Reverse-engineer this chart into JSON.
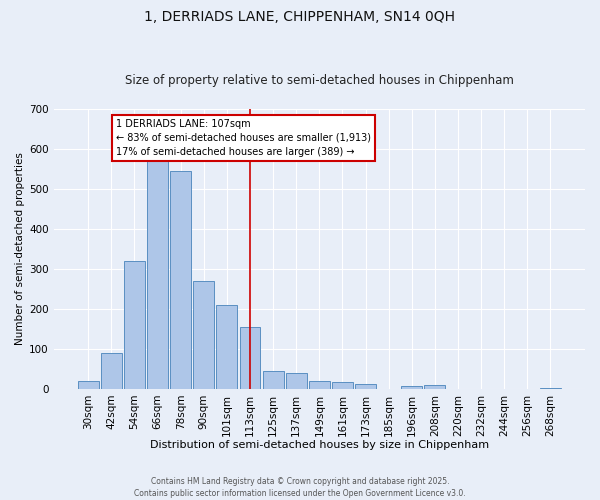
{
  "title1": "1, DERRIADS LANE, CHIPPENHAM, SN14 0QH",
  "title2": "Size of property relative to semi-detached houses in Chippenham",
  "xlabel": "Distribution of semi-detached houses by size in Chippenham",
  "ylabel": "Number of semi-detached properties",
  "footer1": "Contains HM Land Registry data © Crown copyright and database right 2025.",
  "footer2": "Contains public sector information licensed under the Open Government Licence v3.0.",
  "categories": [
    "30sqm",
    "42sqm",
    "54sqm",
    "66sqm",
    "78sqm",
    "90sqm",
    "101sqm",
    "113sqm",
    "125sqm",
    "137sqm",
    "149sqm",
    "161sqm",
    "173sqm",
    "185sqm",
    "196sqm",
    "208sqm",
    "220sqm",
    "232sqm",
    "244sqm",
    "256sqm",
    "268sqm"
  ],
  "values": [
    20,
    90,
    320,
    570,
    545,
    270,
    210,
    155,
    45,
    40,
    20,
    17,
    12,
    0,
    8,
    10,
    0,
    0,
    0,
    0,
    3
  ],
  "bar_color": "#aec6e8",
  "bar_edge_color": "#5a8fc2",
  "vline_color": "#cc0000",
  "annotation_title": "1 DERRIADS LANE: 107sqm",
  "annotation_line1": "← 83% of semi-detached houses are smaller (1,913)",
  "annotation_line2": "17% of semi-detached houses are larger (389) →",
  "annotation_box_color": "#ffffff",
  "annotation_box_edge": "#cc0000",
  "ylim": [
    0,
    700
  ],
  "background_color": "#e8eef8",
  "grid_color": "#ffffff"
}
